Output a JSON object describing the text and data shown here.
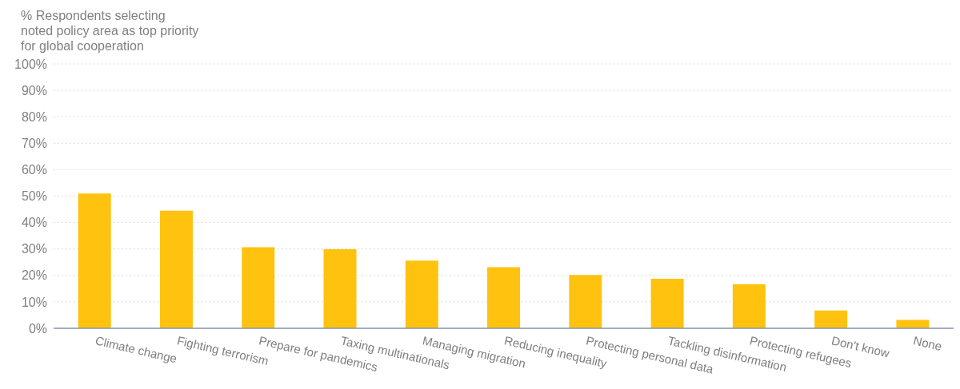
{
  "chart_data": {
    "type": "bar",
    "title": "% Respondents selecting\nnoted policy area as top priority\nfor global cooperation",
    "categories": [
      "Climate change",
      "Fighting terrorism",
      "Prepare for pandemics",
      "Taxing multinationals",
      "Managing migration",
      "Reducing inequality",
      "Protecting personal data",
      "Tackling disinformation",
      "Protecting refugees",
      "Don't know",
      "None"
    ],
    "values": [
      51.0,
      44.5,
      30.7,
      29.9,
      25.6,
      23.1,
      20.2,
      18.7,
      16.7,
      6.7,
      3.2
    ],
    "color": "#ffc20e",
    "ylim": [
      0,
      100
    ],
    "yticks": [
      {
        "value": 0,
        "label": "0%"
      },
      {
        "value": 10,
        "label": "10%"
      },
      {
        "value": 20,
        "label": "20%"
      },
      {
        "value": 30,
        "label": "30%"
      },
      {
        "value": 40,
        "label": "40%"
      },
      {
        "value": 50,
        "label": "50%"
      },
      {
        "value": 60,
        "label": "60%"
      },
      {
        "value": 70,
        "label": "70%"
      },
      {
        "value": 80,
        "label": "80%"
      },
      {
        "value": 90,
        "label": "90%"
      },
      {
        "value": 100,
        "label": "100%"
      }
    ],
    "grid": "y",
    "legend": false
  }
}
